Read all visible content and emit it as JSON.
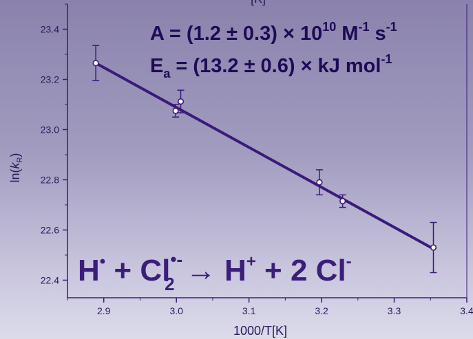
{
  "chart_data": {
    "type": "scatter",
    "xlabel": "1000/T[K]",
    "ylabel_main": "ln(",
    "ylabel_k": "k",
    "ylabel_sub": "R",
    "ylabel_close": ")",
    "xlim": [
      2.85,
      3.4
    ],
    "ylim": [
      22.33,
      23.5
    ],
    "xticks": [
      "2.9",
      "3.0",
      "3.1",
      "3.2",
      "3.3",
      "3.4"
    ],
    "yticks": [
      "22.4",
      "22.6",
      "22.8",
      "23.0",
      "23.2",
      "23.4"
    ],
    "points": [
      {
        "x": 2.889,
        "y": 23.265,
        "err": 0.07
      },
      {
        "x": 2.999,
        "y": 23.075,
        "err": 0.025
      },
      {
        "x": 3.006,
        "y": 23.112,
        "err": 0.045
      },
      {
        "x": 3.197,
        "y": 22.79,
        "err": 0.05
      },
      {
        "x": 3.229,
        "y": 22.715,
        "err": 0.025
      },
      {
        "x": 3.354,
        "y": 22.53,
        "err": 0.1
      }
    ],
    "fit_line": {
      "x": [
        2.889,
        3.354
      ],
      "y": [
        23.265,
        22.525
      ]
    },
    "colors": {
      "line": "#3a1a7a",
      "marker_fill": "#ffffff",
      "text": "#2a1a5e"
    }
  },
  "annotations": {
    "eq_a": {
      "prefix": "A = (1.2 ± 0.3) × 10",
      "exp": "10",
      "unit1": " M",
      "unit1_exp": "-1",
      "unit2": " s",
      "unit2_exp": "-1"
    },
    "eq_ea": {
      "prefix": "E",
      "sub": "a",
      "rest": " = (13.2 ± 0.6) × kJ mol",
      "exp": "-1"
    },
    "reaction": {
      "h": "H",
      "h_sup": "•",
      "plus1": " + Cl",
      "cl_sup": "•-",
      "cl_sub": "2",
      "arrow": " → ",
      "h2": "H",
      "h2_sup": "+",
      "plus2": " + 2 Cl",
      "cl2_sup": "-"
    }
  },
  "top_cut_text": "[K]"
}
